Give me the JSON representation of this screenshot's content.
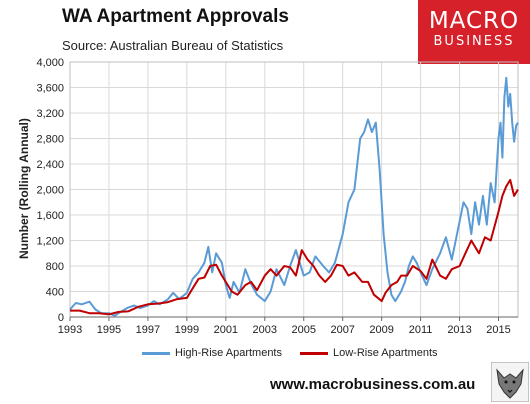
{
  "header": {
    "title": "WA Apartment Approvals",
    "subtitle": "Source: Australian Bureau of Statistics"
  },
  "logo": {
    "line1": "MACRO",
    "line2": "BUSINESS",
    "color": "#d6202a"
  },
  "footer": {
    "url": "www.macrobusiness.com.au",
    "icon": "wolf-logo-icon"
  },
  "chart_data": {
    "type": "line",
    "title": "WA Apartment Approvals",
    "xlabel": "",
    "ylabel": "Number (Rolling Annual)",
    "xlim": [
      1993,
      2016
    ],
    "ylim": [
      0,
      4000
    ],
    "x_ticks": [
      "1993",
      "1995",
      "1997",
      "1999",
      "2001",
      "2003",
      "2005",
      "2007",
      "2009",
      "2011",
      "2013",
      "2015"
    ],
    "y_ticks": [
      "0",
      "400",
      "800",
      "1,200",
      "1,600",
      "2,000",
      "2,400",
      "2,800",
      "3,200",
      "3,600",
      "4,000"
    ],
    "grid": true,
    "legend_position": "bottom",
    "series": [
      {
        "name": "High-Rise Apartments",
        "color": "#5b9bd5",
        "x": [
          1993.0,
          1993.3,
          1993.6,
          1994.0,
          1994.3,
          1994.6,
          1995.0,
          1995.3,
          1995.6,
          1996.0,
          1996.3,
          1996.6,
          1997.0,
          1997.3,
          1997.6,
          1998.0,
          1998.3,
          1998.6,
          1999.0,
          1999.3,
          1999.6,
          1999.9,
          2000.1,
          2000.3,
          2000.5,
          2000.8,
          2001.0,
          2001.2,
          2001.4,
          2001.7,
          2002.0,
          2002.3,
          2002.6,
          2003.0,
          2003.3,
          2003.6,
          2004.0,
          2004.3,
          2004.6,
          2005.0,
          2005.3,
          2005.6,
          2006.0,
          2006.3,
          2006.6,
          2007.0,
          2007.3,
          2007.6,
          2007.9,
          2008.1,
          2008.3,
          2008.5,
          2008.7,
          2008.9,
          2009.1,
          2009.3,
          2009.5,
          2009.7,
          2010.0,
          2010.2,
          2010.4,
          2010.6,
          2010.8,
          2011.0,
          2011.3,
          2011.6,
          2012.0,
          2012.3,
          2012.6,
          2013.0,
          2013.2,
          2013.4,
          2013.6,
          2013.8,
          2014.0,
          2014.2,
          2014.4,
          2014.6,
          2014.8,
          2015.0,
          2015.1,
          2015.2,
          2015.3,
          2015.4,
          2015.5,
          2015.6,
          2015.7,
          2015.8,
          2015.9,
          2016.0
        ],
        "values": [
          120,
          220,
          200,
          240,
          120,
          60,
          60,
          20,
          80,
          150,
          180,
          140,
          180,
          250,
          200,
          270,
          380,
          280,
          380,
          600,
          700,
          850,
          1100,
          700,
          1000,
          850,
          500,
          300,
          550,
          380,
          750,
          520,
          350,
          250,
          400,
          750,
          500,
          800,
          1050,
          650,
          700,
          950,
          800,
          700,
          850,
          1300,
          1800,
          2000,
          2800,
          2900,
          3100,
          2900,
          3050,
          2300,
          1300,
          700,
          350,
          250,
          400,
          550,
          800,
          950,
          850,
          700,
          500,
          750,
          1000,
          1250,
          900,
          1500,
          1800,
          1700,
          1300,
          1800,
          1450,
          1900,
          1450,
          2100,
          1800,
          2800,
          3050,
          2500,
          3450,
          3750,
          3300,
          3500,
          3050,
          2750,
          3000,
          3050
        ]
      },
      {
        "name": "Low-Rise Apartments",
        "color": "#c00000",
        "x": [
          1993.0,
          1993.5,
          1994.0,
          1994.5,
          1995.0,
          1995.5,
          1996.0,
          1996.5,
          1997.0,
          1997.5,
          1998.0,
          1998.5,
          1999.0,
          1999.3,
          1999.6,
          1999.9,
          2000.2,
          2000.5,
          2000.8,
          2001.0,
          2001.3,
          2001.6,
          2002.0,
          2002.3,
          2002.6,
          2003.0,
          2003.3,
          2003.6,
          2004.0,
          2004.3,
          2004.6,
          2004.9,
          2005.2,
          2005.5,
          2005.8,
          2006.1,
          2006.4,
          2006.7,
          2007.0,
          2007.3,
          2007.6,
          2008.0,
          2008.3,
          2008.6,
          2009.0,
          2009.2,
          2009.5,
          2009.8,
          2010.0,
          2010.3,
          2010.6,
          2011.0,
          2011.3,
          2011.6,
          2012.0,
          2012.3,
          2012.6,
          2013.0,
          2013.3,
          2013.6,
          2014.0,
          2014.3,
          2014.6,
          2015.0,
          2015.2,
          2015.4,
          2015.6,
          2015.8,
          2016.0
        ],
        "values": [
          100,
          100,
          60,
          60,
          40,
          80,
          90,
          160,
          200,
          210,
          230,
          280,
          300,
          450,
          600,
          620,
          800,
          820,
          650,
          550,
          400,
          350,
          500,
          550,
          420,
          650,
          750,
          650,
          800,
          780,
          650,
          1050,
          900,
          800,
          650,
          550,
          650,
          820,
          800,
          650,
          700,
          550,
          550,
          350,
          250,
          380,
          500,
          550,
          650,
          650,
          800,
          720,
          600,
          900,
          650,
          600,
          750,
          800,
          1000,
          1200,
          1000,
          1250,
          1200,
          1650,
          1900,
          2050,
          2150,
          1900,
          2000
        ]
      }
    ]
  }
}
